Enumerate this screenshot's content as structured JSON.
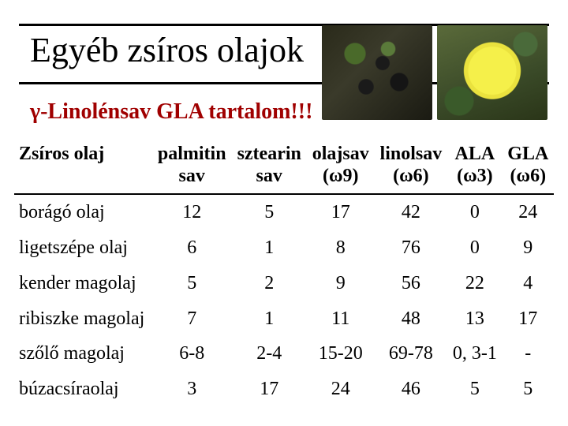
{
  "title": "Egyéb zsíros olajok",
  "subtitle": "γ-Linolénsav GLA tartalom!!!",
  "photos": {
    "left_alt": "blackcurrant-berries",
    "right_alt": "evening-primrose-flower"
  },
  "table": {
    "headers": {
      "oil": "Zsíros olaj",
      "palmitin_l1": "palmitin",
      "palmitin_l2": "sav",
      "stearin_l1": "sztearin",
      "stearin_l2": "sav",
      "oleic_l1": "olajsav",
      "oleic_l2": "(ω9)",
      "linoleic_l1": "linolsav",
      "linoleic_l2": "(ω6)",
      "ala_l1": "ALA",
      "ala_l2": "(ω3)",
      "gla_l1": "GLA",
      "gla_l2": "(ω6)"
    },
    "rows": [
      {
        "oil": "borágó olaj",
        "palmitin": "12",
        "stearin": "5",
        "oleic": "17",
        "linoleic": "42",
        "ala": "0",
        "gla": "24"
      },
      {
        "oil": "ligetszépe olaj",
        "palmitin": "6",
        "stearin": "1",
        "oleic": "8",
        "linoleic": "76",
        "ala": "0",
        "gla": "9"
      },
      {
        "oil": "kender magolaj",
        "palmitin": "5",
        "stearin": "2",
        "oleic": "9",
        "linoleic": "56",
        "ala": "22",
        "gla": "4"
      },
      {
        "oil": "ribiszke magolaj",
        "palmitin": "7",
        "stearin": "1",
        "oleic": "11",
        "linoleic": "48",
        "ala": "13",
        "gla": "17"
      },
      {
        "oil": "szőlő magolaj",
        "palmitin": "6-8",
        "stearin": "2-4",
        "oleic": "15-20",
        "linoleic": "69-78",
        "ala": "0, 3-1",
        "gla": "-"
      },
      {
        "oil": "búzacsíraolaj",
        "palmitin": "3",
        "stearin": "17",
        "oleic": "24",
        "linoleic": "46",
        "ala": "5",
        "gla": "5"
      }
    ]
  }
}
